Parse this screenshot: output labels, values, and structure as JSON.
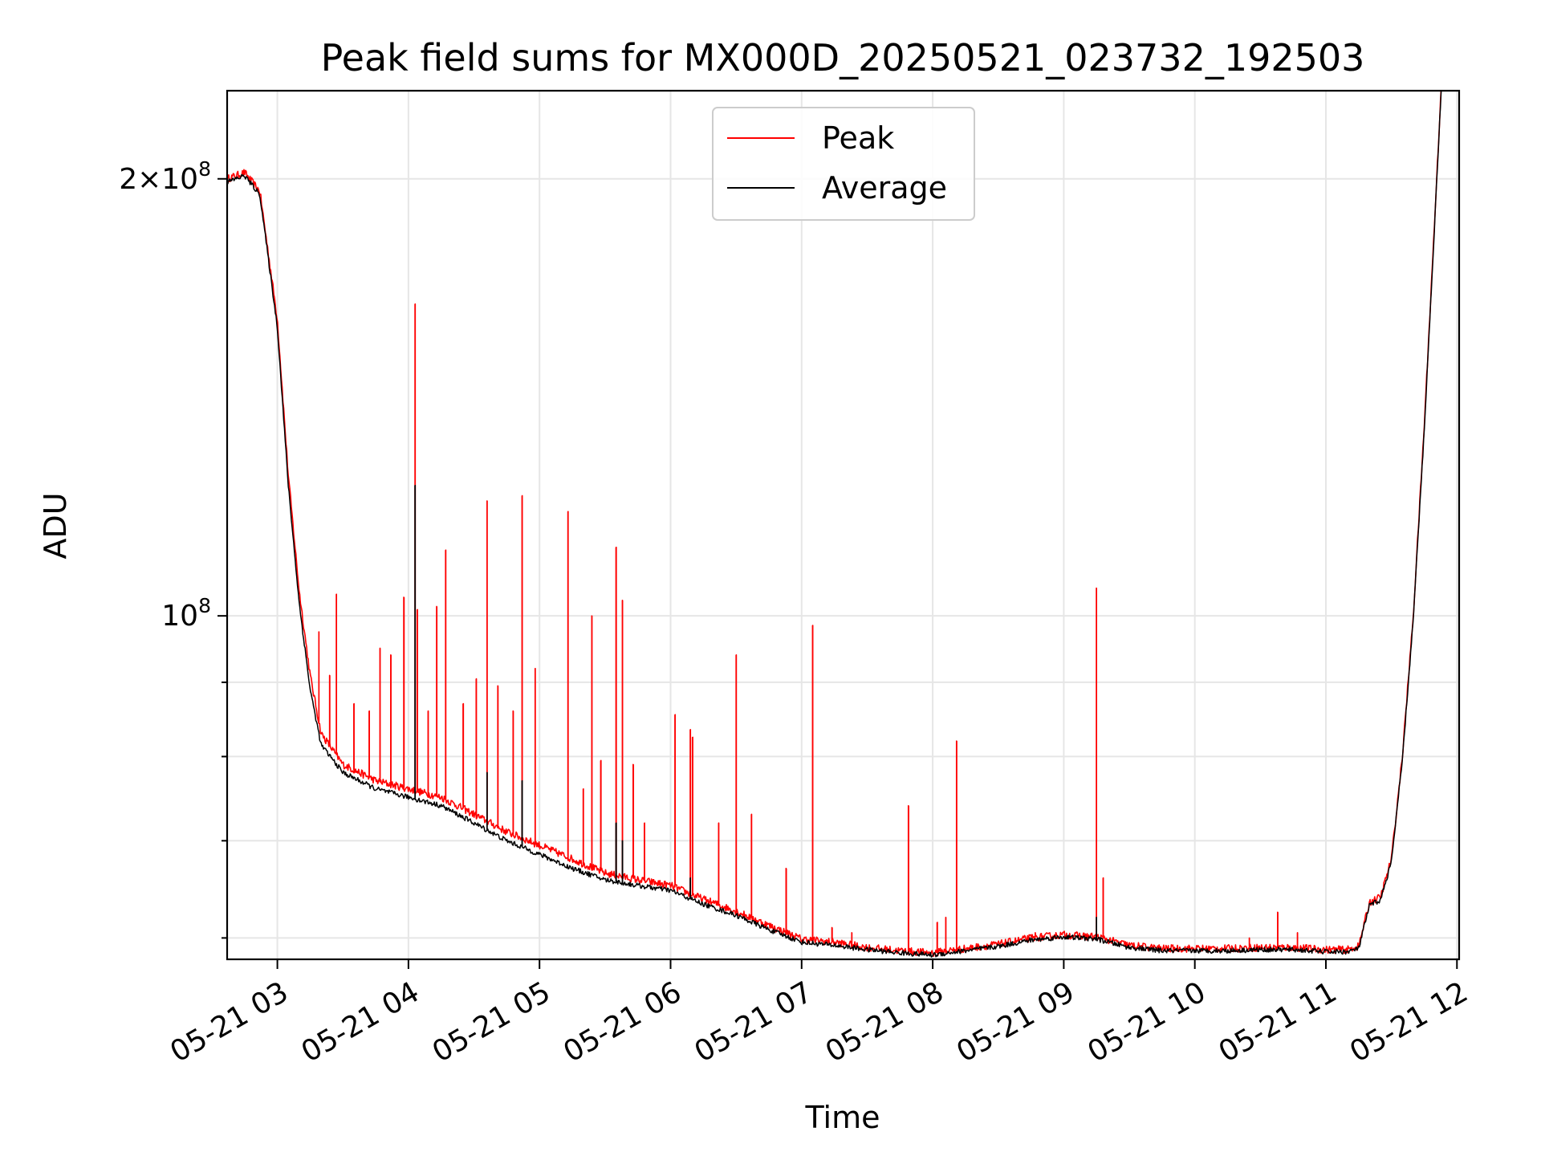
{
  "chart_data": {
    "type": "line",
    "title": "Peak field sums for MX000D_20250521_023732_192503",
    "xlabel": "Time",
    "ylabel": "ADU",
    "y_scale": "log",
    "grid": true,
    "legend_placement": "top-center",
    "x_tick_labels": [
      "05-21 03",
      "05-21 04",
      "05-21 05",
      "05-21 06",
      "05-21 07",
      "05-21 08",
      "05-21 09",
      "05-21 10",
      "05-21 11",
      "05-21 12"
    ],
    "xlim": [
      "2025-05-21 02:37",
      "2025-05-21 12:01"
    ],
    "ylim": [
      58000000,
      230000000
    ],
    "y_major_ticks": [
      {
        "value": 100000000,
        "mantissa": "",
        "exponent": "8"
      },
      {
        "value": 200000000,
        "mantissa": "2",
        "exponent": "8"
      }
    ],
    "y_minor_ticks": [
      60000000,
      70000000,
      80000000,
      90000000
    ],
    "series": [
      {
        "name": "Peak",
        "color": "#ff0000",
        "x": [
          "02:37",
          "02:45",
          "02:52",
          "03:00",
          "03:05",
          "03:10",
          "03:15",
          "03:20",
          "03:30",
          "03:45",
          "04:00",
          "04:15",
          "04:30",
          "04:45",
          "05:00",
          "05:15",
          "05:30",
          "05:45",
          "06:00",
          "06:15",
          "06:30",
          "06:45",
          "07:00",
          "07:15",
          "07:30",
          "07:45",
          "08:00",
          "08:15",
          "08:30",
          "08:45",
          "09:00",
          "09:15",
          "09:30",
          "09:45",
          "10:00",
          "10:15",
          "10:30",
          "10:45",
          "11:00",
          "11:10",
          "11:15",
          "11:20",
          "11:25",
          "11:30",
          "11:35",
          "11:40",
          "11:45",
          "11:50",
          "11:53"
        ],
        "y": [
          200000000,
          202000000,
          196000000,
          160000000,
          125000000,
          104000000,
          91000000,
          83000000,
          79000000,
          77000000,
          76000000,
          75000000,
          73000000,
          71000000,
          69500000,
          68000000,
          66500000,
          65800000,
          65200000,
          63800000,
          62600000,
          61200000,
          59900000,
          59600000,
          59100000,
          58800000,
          58600000,
          59000000,
          59400000,
          60000000,
          60300000,
          60100000,
          59300000,
          59000000,
          59000000,
          59000000,
          59100000,
          59100000,
          58900000,
          58900000,
          59200000,
          63500000,
          64000000,
          68000000,
          80000000,
          100000000,
          135000000,
          190000000,
          235000000
        ],
        "spikes": [
          {
            "t": "03:19",
            "peak": 97500000
          },
          {
            "t": "03:24",
            "peak": 91000000
          },
          {
            "t": "03:27",
            "peak": 103500000
          },
          {
            "t": "03:35",
            "peak": 87000000
          },
          {
            "t": "03:42",
            "peak": 86000000
          },
          {
            "t": "03:47",
            "peak": 95000000
          },
          {
            "t": "03:52",
            "peak": 94000000
          },
          {
            "t": "03:58",
            "peak": 103000000
          },
          {
            "t": "04:03",
            "peak": 164000000
          },
          {
            "t": "04:04",
            "peak": 101000000
          },
          {
            "t": "04:09",
            "peak": 86000000
          },
          {
            "t": "04:13",
            "peak": 101500000
          },
          {
            "t": "04:17",
            "peak": 111000000
          },
          {
            "t": "04:25",
            "peak": 87000000
          },
          {
            "t": "04:31",
            "peak": 90500000
          },
          {
            "t": "04:36",
            "peak": 120000000
          },
          {
            "t": "04:41",
            "peak": 89500000
          },
          {
            "t": "04:48",
            "peak": 86000000
          },
          {
            "t": "04:52",
            "peak": 121000000
          },
          {
            "t": "04:58",
            "peak": 92000000
          },
          {
            "t": "05:13",
            "peak": 118000000
          },
          {
            "t": "05:20",
            "peak": 76000000
          },
          {
            "t": "05:24",
            "peak": 100000000
          },
          {
            "t": "05:28",
            "peak": 79500000
          },
          {
            "t": "05:35",
            "peak": 111500000
          },
          {
            "t": "05:38",
            "peak": 102500000
          },
          {
            "t": "05:43",
            "peak": 79000000
          },
          {
            "t": "05:48",
            "peak": 72000000
          },
          {
            "t": "06:02",
            "peak": 85500000
          },
          {
            "t": "06:09",
            "peak": 83500000
          },
          {
            "t": "06:10",
            "peak": 82500000
          },
          {
            "t": "06:22",
            "peak": 72000000
          },
          {
            "t": "06:30",
            "peak": 94000000
          },
          {
            "t": "06:37",
            "peak": 73000000
          },
          {
            "t": "06:53",
            "peak": 67000000
          },
          {
            "t": "07:05",
            "peak": 98500000
          },
          {
            "t": "07:14",
            "peak": 61000000
          },
          {
            "t": "07:23",
            "peak": 60500000
          },
          {
            "t": "07:49",
            "peak": 74000000
          },
          {
            "t": "08:02",
            "peak": 61500000
          },
          {
            "t": "08:06",
            "peak": 62000000
          },
          {
            "t": "08:11",
            "peak": 82000000
          },
          {
            "t": "08:47",
            "peak": 60500000
          },
          {
            "t": "09:15",
            "peak": 104500000
          },
          {
            "t": "09:18",
            "peak": 66000000
          },
          {
            "t": "10:25",
            "peak": 60000000
          },
          {
            "t": "10:38",
            "peak": 62500000
          },
          {
            "t": "10:47",
            "peak": 60500000
          }
        ]
      },
      {
        "name": "Average",
        "color": "#000000",
        "x": [
          "02:37",
          "02:45",
          "02:52",
          "03:00",
          "03:05",
          "03:10",
          "03:15",
          "03:20",
          "03:30",
          "03:45",
          "04:00",
          "04:15",
          "04:30",
          "04:45",
          "05:00",
          "05:15",
          "05:30",
          "05:45",
          "06:00",
          "06:15",
          "06:30",
          "06:45",
          "07:00",
          "07:15",
          "07:30",
          "07:45",
          "08:00",
          "08:15",
          "08:30",
          "08:45",
          "09:00",
          "09:15",
          "09:30",
          "09:45",
          "10:00",
          "10:15",
          "10:30",
          "10:45",
          "11:00",
          "11:10",
          "11:15",
          "11:20",
          "11:25",
          "11:30",
          "11:35",
          "11:40",
          "11:45",
          "11:50",
          "11:53"
        ],
        "y": [
          199000000,
          201000000,
          195000000,
          158000000,
          123000000,
          102000000,
          89000000,
          81500000,
          78000000,
          76000000,
          75000000,
          74000000,
          72000000,
          70000000,
          68500000,
          67000000,
          65800000,
          65200000,
          64700000,
          63300000,
          62200000,
          60800000,
          59600000,
          59300000,
          58900000,
          58600000,
          58400000,
          58800000,
          59200000,
          59800000,
          60100000,
          59900000,
          59100000,
          58800000,
          58800000,
          58800000,
          58900000,
          58900000,
          58700000,
          58700000,
          59000000,
          63200000,
          63700000,
          67700000,
          79500000,
          99500000,
          134000000,
          189000000,
          234000000
        ],
        "spikes": [
          {
            "t": "04:03",
            "peak": 123000000
          },
          {
            "t": "04:36",
            "peak": 78000000
          },
          {
            "t": "04:52",
            "peak": 77000000
          },
          {
            "t": "05:35",
            "peak": 72000000
          },
          {
            "t": "05:38",
            "peak": 70000000
          },
          {
            "t": "06:09",
            "peak": 66000000
          },
          {
            "t": "09:15",
            "peak": 62000000
          }
        ]
      }
    ]
  }
}
